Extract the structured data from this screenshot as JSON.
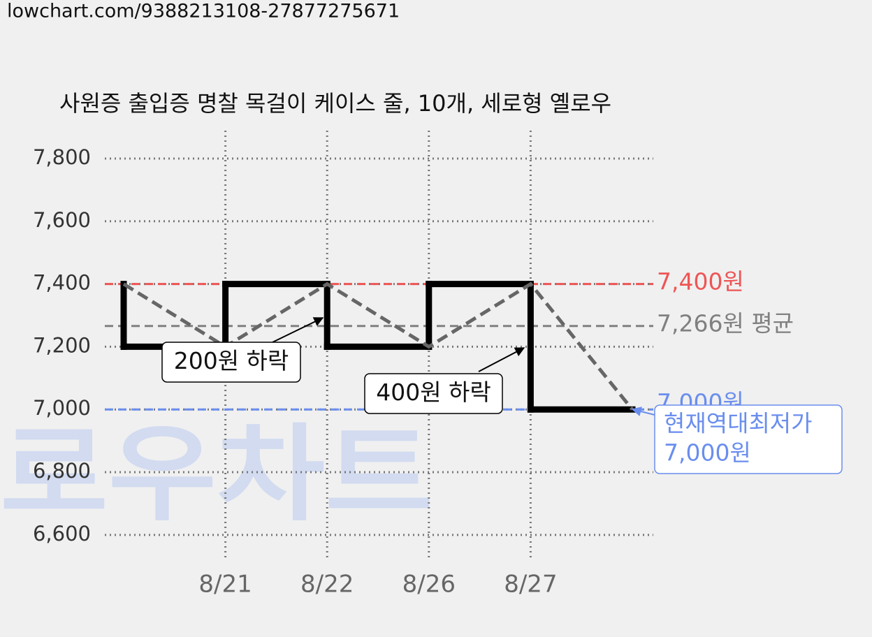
{
  "header": {
    "url": "lowchart.com/9388213108-27877275671"
  },
  "watermark": "로우차트",
  "chart_data": {
    "type": "line",
    "step": "before",
    "title": "사원증 출입증 명찰 목걸이 케이스 줄, 10개, 세로형 옐로우",
    "categories": [
      null,
      "8/21",
      "8/22",
      "8/26",
      "8/27",
      null
    ],
    "values": [
      7400,
      7200,
      7400,
      7200,
      7400,
      7000
    ],
    "step_color": "#000000",
    "line_color": "#666666",
    "ylim": [
      6524,
      7889
    ],
    "yticks": [
      {
        "value": 6600,
        "label": "6,600"
      },
      {
        "value": 6800,
        "label": "6,800"
      },
      {
        "value": 7000,
        "label": "7,000"
      },
      {
        "value": 7200,
        "label": "7,200"
      },
      {
        "value": 7400,
        "label": "7,400"
      },
      {
        "value": 7600,
        "label": "7,600"
      },
      {
        "value": 7800,
        "label": "7,800"
      }
    ],
    "grid": true,
    "reference_lines": [
      {
        "value": 7400,
        "label": "7,400원",
        "color": "#ee5555"
      },
      {
        "value": 7266,
        "label": "7,266원 평균",
        "color": "#808080"
      },
      {
        "value": 7000,
        "label": "7,000원",
        "color": "#6a8eee"
      }
    ],
    "annotations": [
      {
        "lines": [
          "200원 하락"
        ]
      },
      {
        "lines": [
          "400원 하락"
        ]
      },
      {
        "lines": [
          "현재역대최저가",
          "7,000원"
        ],
        "color": "#6a8eee"
      }
    ]
  }
}
